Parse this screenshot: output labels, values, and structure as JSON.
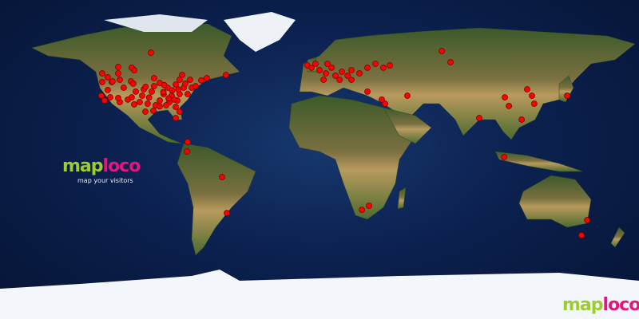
{
  "brand": {
    "word1": "map",
    "word2": "loco",
    "tagline": "map your visitors",
    "color_map": "#9ccc2e",
    "color_loco": "#e5157f"
  },
  "map": {
    "projection": "equirectangular",
    "ocean_color": "#0c2150",
    "dot_color": "#ff0000",
    "visitors": [
      [
        -95.0,
        60.3
      ],
      [
        -122.4,
        48.6
      ],
      [
        -119.3,
        46.4
      ],
      [
        -113.4,
        52.2
      ],
      [
        -113.4,
        48.6
      ],
      [
        -117.0,
        43.7
      ],
      [
        -112.5,
        45.0
      ],
      [
        -122.4,
        43.7
      ],
      [
        -119.3,
        39.2
      ],
      [
        -122.9,
        36.0
      ],
      [
        -116.6,
        44.1
      ],
      [
        -105.8,
        51.8
      ],
      [
        -104.4,
        50.4
      ],
      [
        -106.2,
        44.1
      ],
      [
        -104.9,
        42.8
      ],
      [
        -93.2,
        45.9
      ],
      [
        -90.0,
        43.2
      ],
      [
        -93.2,
        41.4
      ],
      [
        -77.4,
        47.7
      ],
      [
        -72.9,
        45.0
      ],
      [
        -52.7,
        47.7
      ],
      [
        -63.5,
        45.9
      ],
      [
        -66.6,
        44.6
      ],
      [
        -85.5,
        40.5
      ],
      [
        -81.0,
        42.3
      ],
      [
        -76.5,
        40.5
      ],
      [
        -72.0,
        40.5
      ],
      [
        -69.8,
        41.4
      ],
      [
        -87.8,
        36.9
      ],
      [
        -83.3,
        36.0
      ],
      [
        -78.8,
        36.9
      ],
      [
        -74.3,
        36.9
      ],
      [
        -90.0,
        33.3
      ],
      [
        -84.6,
        32.4
      ],
      [
        -80.1,
        33.3
      ],
      [
        -96.8,
        31.5
      ],
      [
        -92.3,
        30.6
      ],
      [
        -99.9,
        36.0
      ],
      [
        -108.0,
        33.8
      ],
      [
        -112.5,
        32.4
      ],
      [
        -117.9,
        35.1
      ],
      [
        -121.1,
        33.3
      ],
      [
        -110.3,
        40.5
      ],
      [
        -104.4,
        31.1
      ],
      [
        -93.6,
        27.5
      ],
      [
        -86.4,
        30.6
      ],
      [
        -81.0,
        29.7
      ],
      [
        -78.8,
        27.0
      ],
      [
        -98.1,
        27.0
      ],
      [
        -81.0,
        23.4
      ],
      [
        -81.9,
        33.8
      ],
      [
        -75.6,
        42.8
      ],
      [
        -99.0,
        39.6
      ],
      [
        -103.5,
        38.3
      ],
      [
        -94.5,
        38.3
      ],
      [
        -78.8,
        45.0
      ],
      [
        -74.3,
        9.9
      ],
      [
        -113.4,
        34.7
      ],
      [
        -105.8,
        35.1
      ],
      [
        -101.3,
        32.4
      ],
      [
        -88.0,
        38.0
      ],
      [
        -85.0,
        34.5
      ],
      [
        -96.0,
        35.0
      ],
      [
        -90.0,
        30.0
      ],
      [
        -83.0,
        39.0
      ],
      [
        -79.5,
        39.5
      ],
      [
        -98.0,
        41.0
      ],
      [
        -87.5,
        42.0
      ],
      [
        -74.7,
        4.5
      ],
      [
        -54.9,
        -9.9
      ],
      [
        -52.2,
        -30.2
      ],
      [
        68.9,
        61.2
      ],
      [
        73.8,
        54.9
      ],
      [
        -6.8,
        53.1
      ],
      [
        -4.5,
        51.8
      ],
      [
        -2.3,
        54.0
      ],
      [
        0.0,
        50.4
      ],
      [
        3.6,
        48.6
      ],
      [
        6.8,
        51.8
      ],
      [
        9.0,
        47.3
      ],
      [
        12.6,
        49.5
      ],
      [
        15.8,
        47.3
      ],
      [
        18.0,
        50.4
      ],
      [
        22.5,
        48.6
      ],
      [
        27.0,
        51.8
      ],
      [
        31.5,
        54.0
      ],
      [
        36.0,
        51.8
      ],
      [
        39.6,
        53.1
      ],
      [
        2.3,
        45.0
      ],
      [
        11.3,
        45.0
      ],
      [
        18.0,
        45.0
      ],
      [
        4.5,
        54.0
      ],
      [
        27.0,
        38.3
      ],
      [
        35.1,
        33.8
      ],
      [
        36.9,
        31.5
      ],
      [
        49.5,
        36.0
      ],
      [
        90.0,
        23.4
      ],
      [
        104.0,
        1.4
      ],
      [
        104.4,
        35.1
      ],
      [
        106.7,
        30.2
      ],
      [
        113.9,
        22.5
      ],
      [
        117.0,
        39.6
      ],
      [
        119.7,
        36.0
      ],
      [
        121.0,
        31.5
      ],
      [
        139.5,
        36.0
      ],
      [
        23.9,
        -28.4
      ],
      [
        27.9,
        -26.1
      ],
      [
        150.8,
        -34.2
      ],
      [
        147.6,
        -42.8
      ]
    ]
  }
}
